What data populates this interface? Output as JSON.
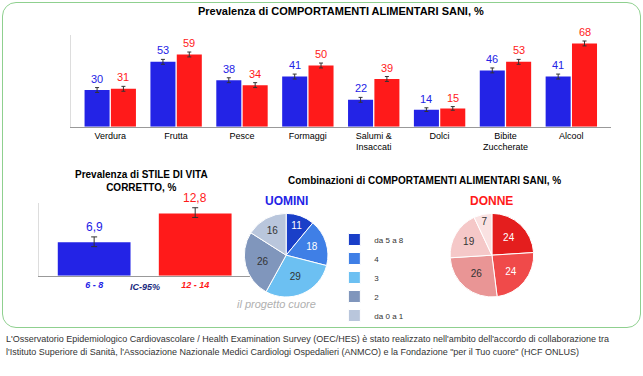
{
  "chart_data": [
    {
      "type": "bar",
      "title": "Prevalenza di COMPORTAMENTI ALIMENTARI SANI, %",
      "categories": [
        "Verdura",
        "Frutta",
        "Pesce",
        "Formaggi",
        "Salumi &\nInsaccati",
        "Dolci",
        "Bibite\nZuccherate",
        "Alcool"
      ],
      "series": [
        {
          "color": "#2323e6",
          "values": [
            30,
            53,
            38,
            41,
            22,
            14,
            46,
            41
          ],
          "errors": [
            2,
            2,
            2,
            2,
            2,
            1.5,
            2,
            2
          ]
        },
        {
          "color": "#ff1a1a",
          "values": [
            31,
            59,
            34,
            50,
            39,
            15,
            53,
            68
          ],
          "errors": [
            2,
            2,
            2,
            2,
            2,
            1.5,
            2,
            2
          ]
        }
      ],
      "ylim": [
        0,
        75
      ],
      "data_labels": true,
      "tick_labels": "x",
      "grid": false
    },
    {
      "type": "bar",
      "title": "Prevalenza di STILE DI VITA\nCORRETTO, %",
      "categories": [
        "6 - 8",
        "12 - 14"
      ],
      "values": [
        6.9,
        12.8
      ],
      "value_labels": [
        "6,9",
        "12,8"
      ],
      "ci": [
        [
          6,
          8
        ],
        [
          12,
          14
        ]
      ],
      "colors": [
        "#2323e6",
        "#ff1a1a"
      ],
      "annotations": [
        "IC-95%"
      ],
      "ylim": [
        0,
        15
      ],
      "data_labels": true,
      "tick_labels": "x",
      "grid": false
    },
    {
      "type": "pie",
      "title": "UOMINI",
      "color": "#2323e6",
      "categories": [
        "da 5 a 8",
        "4",
        "3",
        "2",
        "da 0 a 1"
      ],
      "values": [
        11,
        18,
        29,
        26,
        16
      ],
      "colors": [
        "#1a3fc8",
        "#3f7fe6",
        "#6cc0f2",
        "#8096bc",
        "#b9c6dc"
      ],
      "data_labels": true
    },
    {
      "type": "pie",
      "title": "DONNE",
      "color": "#ff1a1a",
      "categories": [
        "da 5 a 8",
        "4",
        "3",
        "2",
        "da 0 a 1"
      ],
      "values": [
        24,
        24,
        26,
        19,
        7
      ],
      "colors": [
        "#e41e1e",
        "#f04a4a",
        "#e99595",
        "#f5c8c8",
        "#fae2e2"
      ],
      "data_labels": true
    }
  ],
  "texts": {
    "pies_title": "Combinazioni di COMPORTAMENTI ALIMENTARI SANI, %",
    "logo": "il progetto cuore",
    "footer": "L'Osservatorio Epidemiologico Cardiovascolare / Health Examination Survey (OEC/HES) è stato realizzato nell'ambito dell'accordo di collaborazione tra l'Istituto Superiore di Sanità, l'Associazione Nazionale Medici Cardiologi Ospedalieri (ANMCO) e la Fondazione \"per il Tuo cuore\" (HCF ONLUS)"
  }
}
